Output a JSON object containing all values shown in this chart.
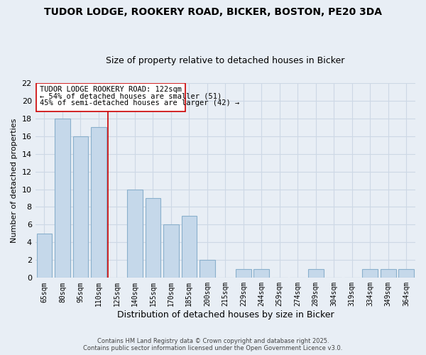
{
  "title": "TUDOR LODGE, ROOKERY ROAD, BICKER, BOSTON, PE20 3DA",
  "subtitle": "Size of property relative to detached houses in Bicker",
  "xlabel": "Distribution of detached houses by size in Bicker",
  "ylabel": "Number of detached properties",
  "bar_color": "#c5d8ea",
  "bar_edge_color": "#8ab0cc",
  "background_color": "#e8eef5",
  "grid_color": "#cdd8e5",
  "bins": [
    "65sqm",
    "80sqm",
    "95sqm",
    "110sqm",
    "125sqm",
    "140sqm",
    "155sqm",
    "170sqm",
    "185sqm",
    "200sqm",
    "215sqm",
    "229sqm",
    "244sqm",
    "259sqm",
    "274sqm",
    "289sqm",
    "304sqm",
    "319sqm",
    "334sqm",
    "349sqm",
    "364sqm"
  ],
  "values": [
    5,
    18,
    16,
    17,
    0,
    10,
    9,
    6,
    7,
    2,
    0,
    1,
    1,
    0,
    0,
    1,
    0,
    0,
    1,
    1,
    1
  ],
  "marker_color": "#cc0000",
  "ylim": [
    0,
    22
  ],
  "yticks": [
    0,
    2,
    4,
    6,
    8,
    10,
    12,
    14,
    16,
    18,
    20,
    22
  ],
  "annotation_title": "TUDOR LODGE ROOKERY ROAD: 122sqm",
  "annotation_line1": "← 54% of detached houses are smaller (51)",
  "annotation_line2": "45% of semi-detached houses are larger (42) →",
  "footer_line1": "Contains HM Land Registry data © Crown copyright and database right 2025.",
  "footer_line2": "Contains public sector information licensed under the Open Government Licence v3.0."
}
